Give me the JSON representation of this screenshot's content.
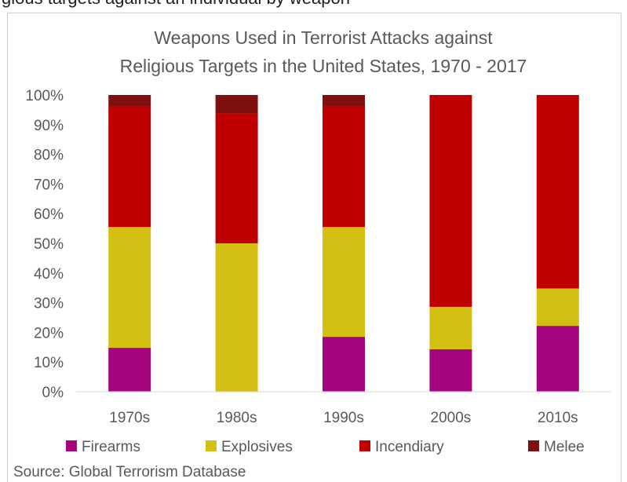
{
  "top_cut_text": "gious targets against an individual by weapon",
  "chart_data": {
    "type": "bar",
    "stacked": true,
    "title": [
      "Weapons Used in Terrorist Attacks against",
      "Religious Targets in the United States, 1970 - 2017"
    ],
    "categories": [
      "1970s",
      "1980s",
      "1990s",
      "2000s",
      "2010s"
    ],
    "series": [
      {
        "name": "Firearms",
        "color": "#A50580",
        "values": [
          0.148,
          0.0,
          0.185,
          0.143,
          0.222
        ]
      },
      {
        "name": "Explosives",
        "color": "#D4C012",
        "values": [
          0.407,
          0.5,
          0.37,
          0.143,
          0.126
        ]
      },
      {
        "name": "Incendiary",
        "color": "#C00000",
        "values": [
          0.408,
          0.438,
          0.408,
          0.714,
          0.652
        ]
      },
      {
        "name": "Melee",
        "color": "#7F1010",
        "values": [
          0.037,
          0.062,
          0.037,
          0.0,
          0.0
        ]
      }
    ],
    "yticks": [
      "0%",
      "10%",
      "20%",
      "30%",
      "40%",
      "50%",
      "60%",
      "70%",
      "80%",
      "90%",
      "100%"
    ],
    "ylim": [
      0,
      1
    ],
    "legend_position": "bottom",
    "grid": false,
    "source": "Source: Global Terrorism Database"
  }
}
